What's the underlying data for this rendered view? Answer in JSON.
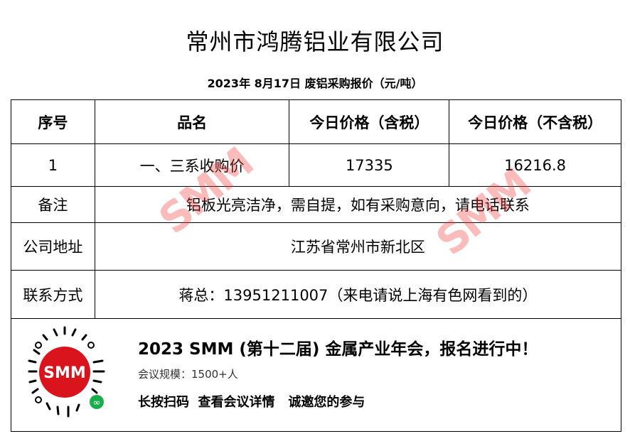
{
  "title": "常州市鸿腾铝业有限公司",
  "subtitle": "2023年 8月17日 废铝采购报价（元/吨）",
  "table": {
    "headers": [
      "序号",
      "品名",
      "今日价格（含税）",
      "今日价格（不含税）"
    ],
    "rows": [
      {
        "no": "1",
        "name": "一、三系收购价",
        "price_tax": "17335",
        "price_notax": "16216.8"
      }
    ],
    "remark_label": "备注",
    "remark": "铝板光亮洁净，需自提，如有采购意向，请电话联系",
    "address_label": "公司地址",
    "address": "江苏省常州市新北区",
    "contact_label": "联系方式",
    "contact": "蒋总：13951211007（来电请说上海有色网看到的）"
  },
  "watermark": "SMM",
  "banner": {
    "headline": "2023 SMM (第十二届) 金属产业年会，报名进行中！",
    "scale": "会议规模：1500+人",
    "cta": "长按扫码  查看会议详情   诚邀您的参与",
    "logo_text": "SMM",
    "brand_color": "#d9141c",
    "miniprogram_color": "#1aad4b"
  }
}
